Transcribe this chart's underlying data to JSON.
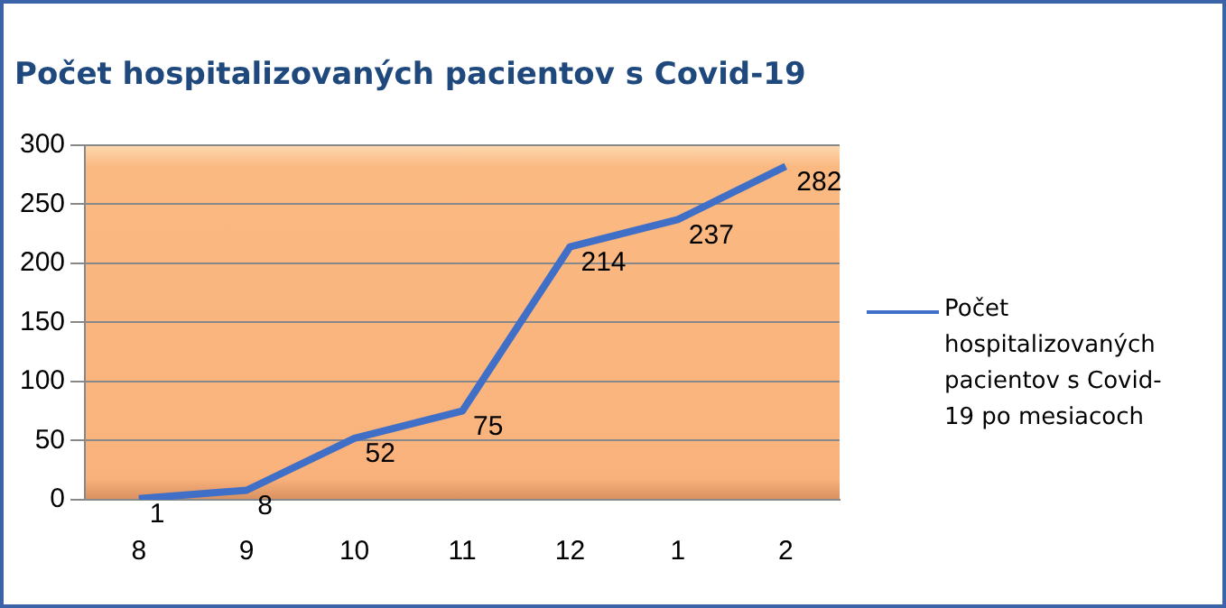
{
  "chart_data": {
    "type": "line",
    "title": "Počet hospitalizovaných pacientov s Covid-19",
    "categories": [
      "8",
      "9",
      "10",
      "11",
      "12",
      "1",
      "2"
    ],
    "series": [
      {
        "name": "Počet hospitalizovaných pacientov s Covid-19 po mesiacoch",
        "color": "#3f6fc6",
        "values": [
          1,
          8,
          52,
          75,
          214,
          237,
          282
        ]
      }
    ],
    "ylim": [
      0,
      300
    ],
    "yticks": [
      0,
      50,
      100,
      150,
      200,
      250,
      300
    ],
    "grid": "y",
    "legend": "right",
    "data_labels": true,
    "marker": "none",
    "line_style": "solid"
  }
}
